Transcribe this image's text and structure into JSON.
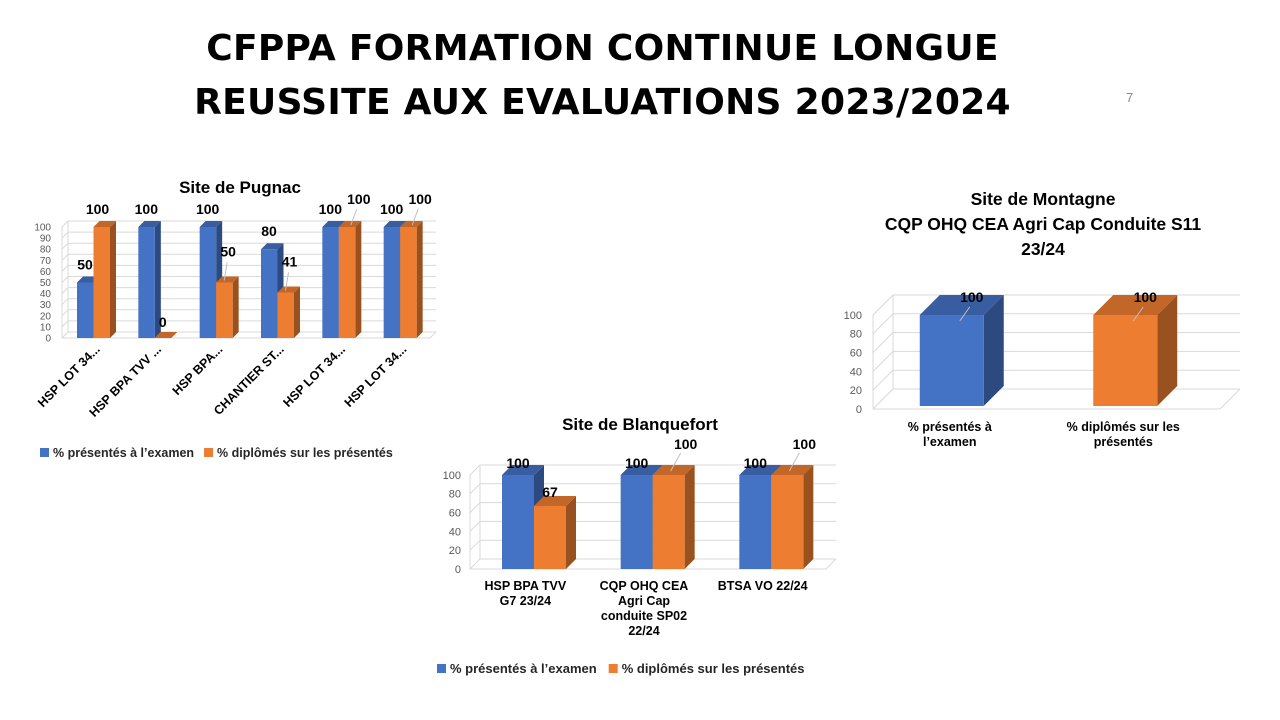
{
  "slide": {
    "title_line1": "CFPPA FORMATION CONTINUE LONGUE",
    "title_line2": "REUSSITE AUX EVALUATIONS 2023/2024",
    "page_number": "7"
  },
  "colors": {
    "presentes": "#4472C4",
    "diplomes": "#ED7D31"
  },
  "chart_data": [
    {
      "id": "pugnac",
      "type": "bar",
      "style": "3d-clustered-column",
      "title": "Site de Pugnac",
      "categories": [
        "HSP LOT 34...",
        "HSP BPA TVV ...",
        "HSP BPA...",
        "CHANTIER ST...",
        "HSP LOT 34...",
        "HSP LOT 34..."
      ],
      "series": [
        {
          "name": "% présentés à l’examen",
          "values": [
            50,
            100,
            100,
            80,
            100,
            100
          ]
        },
        {
          "name": "% diplômés sur les présentés",
          "values": [
            100,
            0,
            50,
            41,
            100,
            100
          ]
        }
      ],
      "yticks": [
        0,
        10,
        20,
        30,
        40,
        50,
        60,
        70,
        80,
        90,
        100
      ],
      "ylim": [
        0,
        100
      ],
      "grid": true,
      "legend": "bottom"
    },
    {
      "id": "blanquefort",
      "type": "bar",
      "style": "3d-clustered-column",
      "title": "Site de Blanquefort",
      "categories": [
        [
          "HSP BPA TVV",
          "G7 23/24"
        ],
        [
          "CQP OHQ CEA",
          "Agri Cap",
          "conduite SP02",
          "22/24"
        ],
        [
          "BTSA VO 22/24"
        ]
      ],
      "series": [
        {
          "name": "% présentés à l’examen",
          "values": [
            100,
            100,
            100
          ]
        },
        {
          "name": "% diplômés sur les présentés",
          "values": [
            67,
            100,
            100
          ]
        }
      ],
      "yticks": [
        0,
        20,
        40,
        60,
        80,
        100
      ],
      "ylim": [
        0,
        100
      ],
      "grid": true,
      "legend": "bottom"
    },
    {
      "id": "montagne",
      "type": "bar",
      "style": "3d-column",
      "title_lines": [
        "Site de Montagne",
        "CQP OHQ CEA Agri Cap Conduite S11",
        "23/24"
      ],
      "categories": [
        [
          "% présentés à",
          "l’examen"
        ],
        [
          "% diplômés sur les",
          "présentés"
        ]
      ],
      "values": [
        100,
        100
      ],
      "yticks": [
        0,
        20,
        40,
        60,
        80,
        100
      ],
      "ylim": [
        0,
        100
      ],
      "grid": true
    }
  ]
}
